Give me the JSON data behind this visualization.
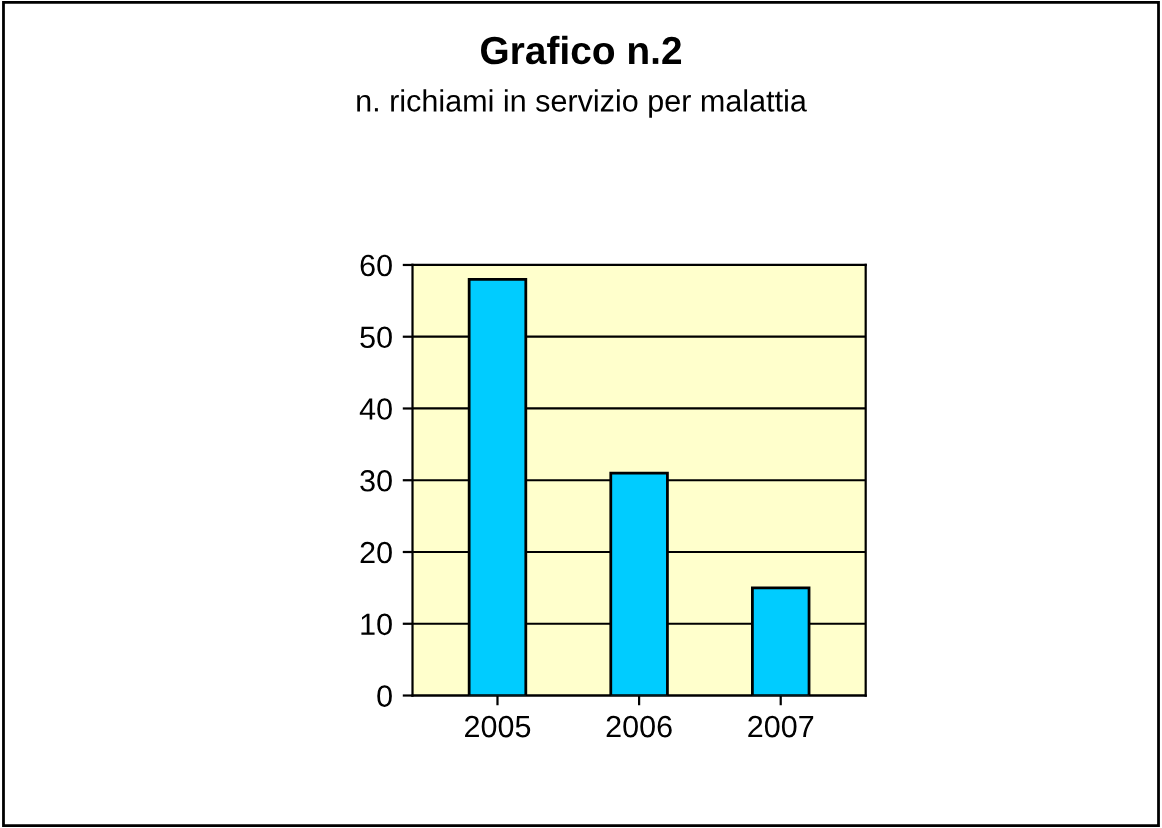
{
  "chart_data": {
    "type": "bar",
    "title": "Grafico n.2",
    "subtitle": "n. richiami in servizio per malattia",
    "categories": [
      "2005",
      "2006",
      "2007"
    ],
    "values": [
      58,
      31,
      15
    ],
    "color": "#00ccff",
    "ylim": [
      0,
      60
    ],
    "yticks": [
      0,
      10,
      20,
      30,
      40,
      50,
      60
    ],
    "grid": "y"
  }
}
